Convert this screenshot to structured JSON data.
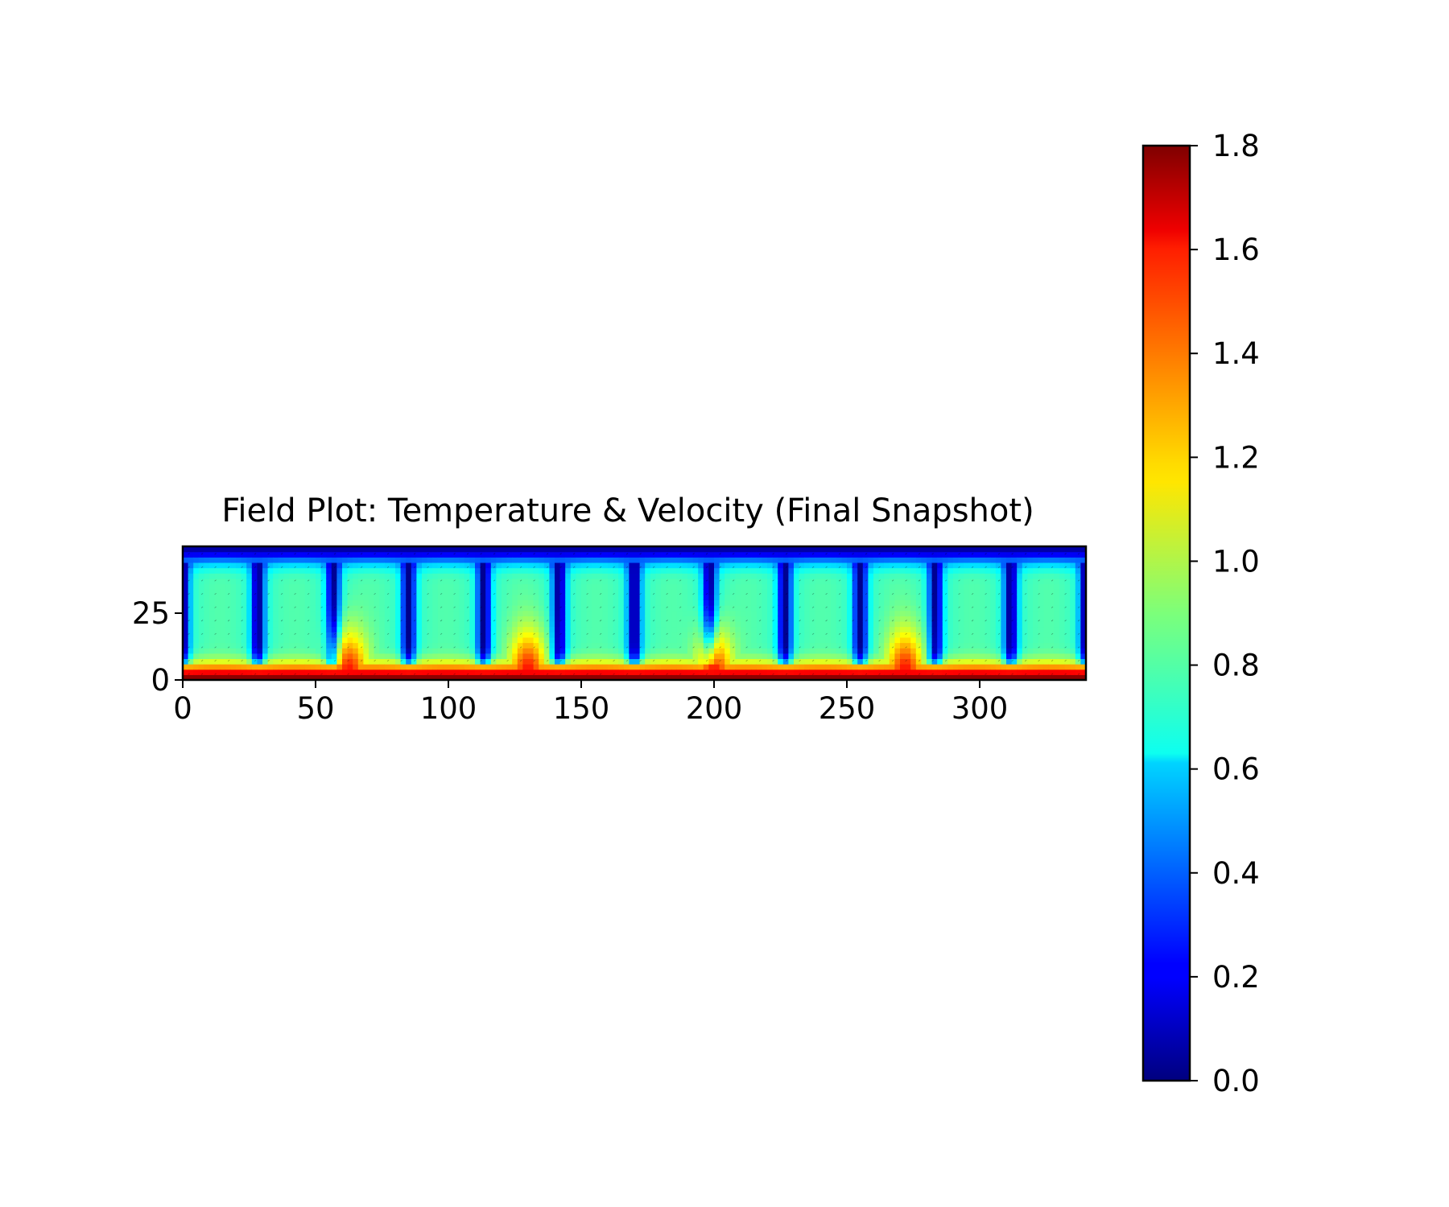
{
  "chart_data": [
    {
      "type": "heatmap",
      "title": "Field Plot: Temperature & Velocity (Final Snapshot)",
      "xlabel": "",
      "ylabel": "",
      "xlim": [
        0,
        340
      ],
      "ylim": [
        0,
        50
      ],
      "x_ticks": [
        0,
        50,
        100,
        150,
        200,
        250,
        300
      ],
      "y_ticks": [
        0,
        25
      ],
      "colormap": "jet",
      "value_range": [
        0.0,
        1.8
      ],
      "description_values": {
        "bottom_boundary_value": 1.8,
        "top_boundary_value": 0.0,
        "cell_core_value": 0.75,
        "plume_gap_value": 0.05
      },
      "cells": {
        "count": 12,
        "centers_x": [
          14.3,
          42.9,
          71.4,
          100.0,
          128.6,
          157.1,
          185.7,
          214.3,
          242.9,
          271.4,
          300.0,
          328.6
        ],
        "dark_gaps_x": [
          28.5,
          62.5,
          95.5,
          130.0,
          163.0,
          198.0,
          235.0,
          270.0,
          308.0
        ],
        "hot_plumes_x": [
          62.5,
          130.0,
          200.0,
          272.0
        ]
      },
      "overlay": "velocity quiver arrows"
    },
    {
      "type": "colorbar",
      "ticks": [
        "0.0",
        "0.2",
        "0.4",
        "0.6",
        "0.8",
        "1.0",
        "1.2",
        "1.4",
        "1.6",
        "1.8"
      ],
      "range": [
        0.0,
        1.8
      ],
      "colormap": "jet"
    }
  ]
}
